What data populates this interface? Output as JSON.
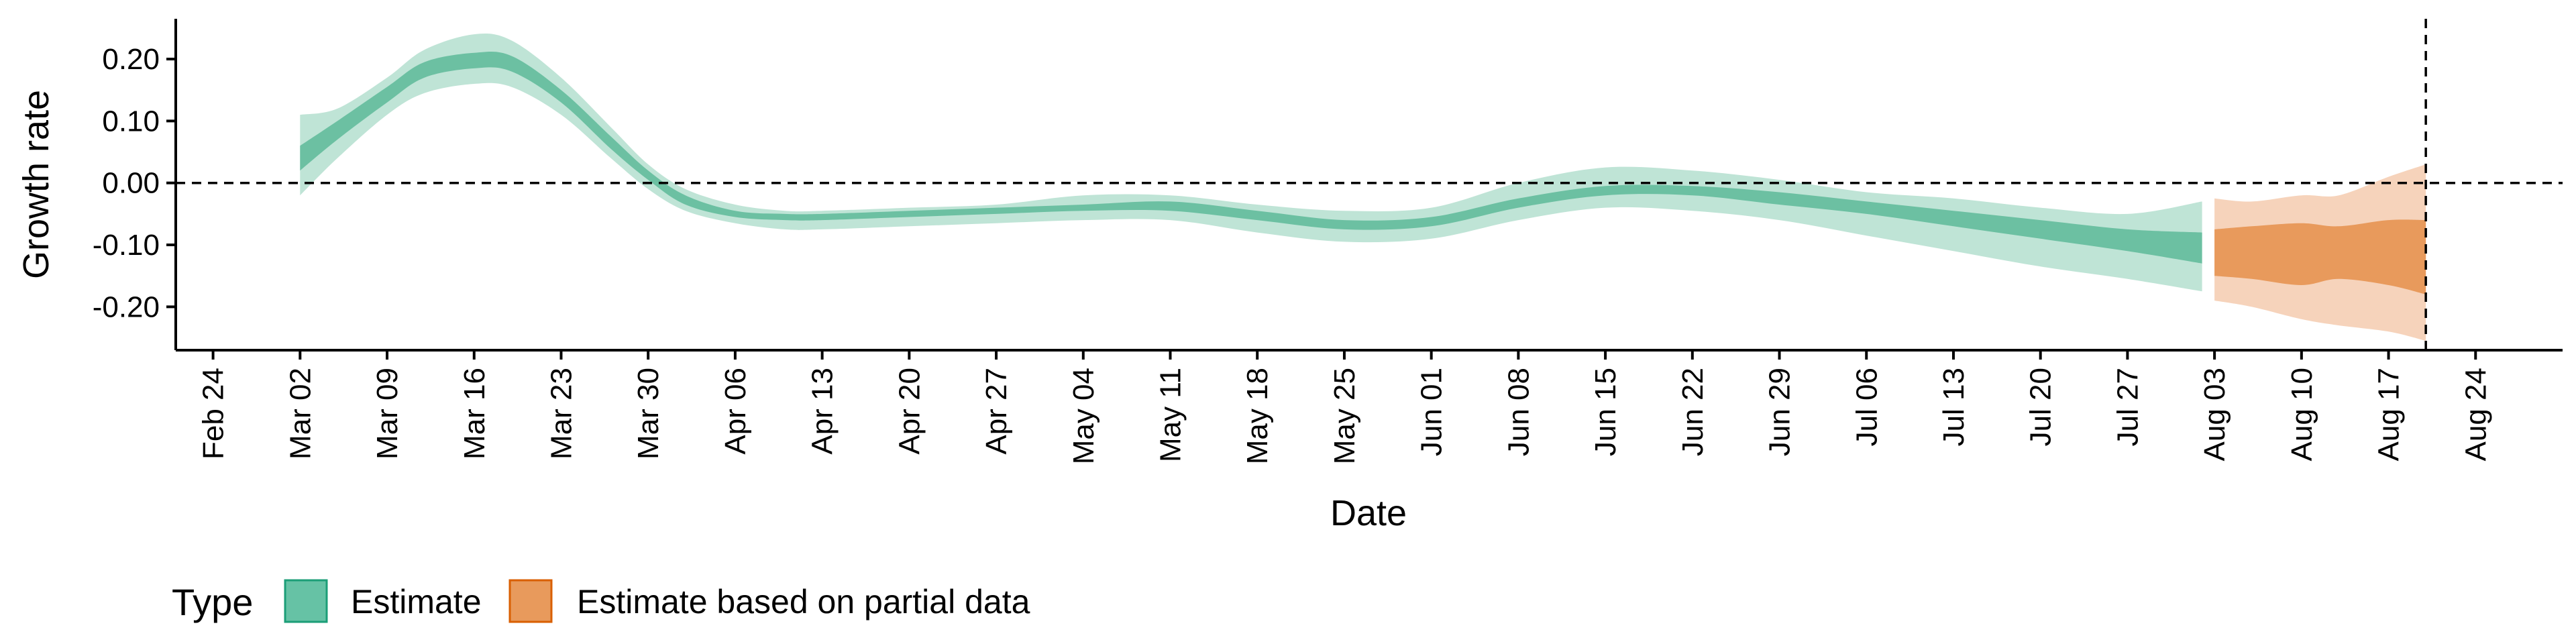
{
  "chart_data": {
    "type": "area",
    "title": "",
    "xlabel": "Date",
    "ylabel": "Growth rate",
    "x_range": [
      "2020-02-21",
      "2020-08-31"
    ],
    "ylim": [
      -0.27,
      0.265
    ],
    "y_ticks": [
      0.2,
      0.1,
      0.0,
      -0.1,
      -0.2
    ],
    "y_tick_labels": [
      "0.20",
      "0.10",
      "0.00",
      "-0.10",
      "-0.20"
    ],
    "x_ticks": [
      "2020-02-24",
      "2020-03-02",
      "2020-03-09",
      "2020-03-16",
      "2020-03-23",
      "2020-03-30",
      "2020-04-06",
      "2020-04-13",
      "2020-04-20",
      "2020-04-27",
      "2020-05-04",
      "2020-05-11",
      "2020-05-18",
      "2020-05-25",
      "2020-06-01",
      "2020-06-08",
      "2020-06-15",
      "2020-06-22",
      "2020-06-29",
      "2020-07-06",
      "2020-07-13",
      "2020-07-20",
      "2020-07-27",
      "2020-08-03",
      "2020-08-10",
      "2020-08-17",
      "2020-08-24"
    ],
    "x_tick_labels": [
      "Feb 24",
      "Mar 02",
      "Mar 09",
      "Mar 16",
      "Mar 23",
      "Mar 30",
      "Apr 06",
      "Apr 13",
      "Apr 20",
      "Apr 27",
      "May 04",
      "May 11",
      "May 18",
      "May 25",
      "Jun 01",
      "Jun 08",
      "Jun 15",
      "Jun 22",
      "Jun 29",
      "Jul 06",
      "Jul 13",
      "Jul 20",
      "Jul 27",
      "Aug 03",
      "Aug 10",
      "Aug 17",
      "Aug 24"
    ],
    "hline_y": 0,
    "vline_x": "2020-08-20",
    "grid": false,
    "legend": {
      "title": "Type",
      "position": "bottom-left",
      "entries": [
        {
          "label": "Estimate",
          "fill": "#66C2A5",
          "border": "#1B9E77"
        },
        {
          "label": "Estimate based on partial data",
          "fill": "#E89A5C",
          "border": "#D95F02"
        }
      ]
    },
    "series": [
      {
        "name": "Estimate",
        "colors": {
          "inner": "#6CC0A2",
          "outer": "#BFE4D6"
        },
        "points": [
          {
            "x": "2020-03-02",
            "outer": [
              -0.02,
              0.11
            ],
            "inner": [
              0.02,
              0.06
            ]
          },
          {
            "x": "2020-03-05",
            "outer": [
              0.04,
              0.12
            ],
            "inner": [
              0.07,
              0.1
            ]
          },
          {
            "x": "2020-03-09",
            "outer": [
              0.11,
              0.17
            ],
            "inner": [
              0.13,
              0.155
            ]
          },
          {
            "x": "2020-03-12",
            "outer": [
              0.145,
              0.215
            ],
            "inner": [
              0.17,
              0.195
            ]
          },
          {
            "x": "2020-03-16",
            "outer": [
              0.16,
              0.24
            ],
            "inner": [
              0.185,
              0.21
            ]
          },
          {
            "x": "2020-03-19",
            "outer": [
              0.155,
              0.23
            ],
            "inner": [
              0.18,
              0.205
            ]
          },
          {
            "x": "2020-03-23",
            "outer": [
              0.11,
              0.17
            ],
            "inner": [
              0.13,
              0.15
            ]
          },
          {
            "x": "2020-03-27",
            "outer": [
              0.04,
              0.09
            ],
            "inner": [
              0.055,
              0.075
            ]
          },
          {
            "x": "2020-03-30",
            "outer": [
              -0.01,
              0.03
            ],
            "inner": [
              0.005,
              0.02
            ]
          },
          {
            "x": "2020-04-02",
            "outer": [
              -0.045,
              -0.01
            ],
            "inner": [
              -0.035,
              -0.02
            ]
          },
          {
            "x": "2020-04-06",
            "outer": [
              -0.065,
              -0.035
            ],
            "inner": [
              -0.055,
              -0.045
            ]
          },
          {
            "x": "2020-04-10",
            "outer": [
              -0.075,
              -0.045
            ],
            "inner": [
              -0.06,
              -0.05
            ]
          },
          {
            "x": "2020-04-13",
            "outer": [
              -0.075,
              -0.045
            ],
            "inner": [
              -0.06,
              -0.05
            ]
          },
          {
            "x": "2020-04-20",
            "outer": [
              -0.07,
              -0.04
            ],
            "inner": [
              -0.055,
              -0.045
            ]
          },
          {
            "x": "2020-04-27",
            "outer": [
              -0.065,
              -0.035
            ],
            "inner": [
              -0.05,
              -0.04
            ]
          },
          {
            "x": "2020-05-04",
            "outer": [
              -0.06,
              -0.02
            ],
            "inner": [
              -0.045,
              -0.035
            ]
          },
          {
            "x": "2020-05-11",
            "outer": [
              -0.06,
              -0.02
            ],
            "inner": [
              -0.045,
              -0.03
            ]
          },
          {
            "x": "2020-05-18",
            "outer": [
              -0.08,
              -0.035
            ],
            "inner": [
              -0.06,
              -0.045
            ]
          },
          {
            "x": "2020-05-25",
            "outer": [
              -0.095,
              -0.045
            ],
            "inner": [
              -0.075,
              -0.06
            ]
          },
          {
            "x": "2020-06-01",
            "outer": [
              -0.09,
              -0.04
            ],
            "inner": [
              -0.07,
              -0.055
            ]
          },
          {
            "x": "2020-06-08",
            "outer": [
              -0.06,
              0.0
            ],
            "inner": [
              -0.04,
              -0.025
            ]
          },
          {
            "x": "2020-06-15",
            "outer": [
              -0.04,
              0.025
            ],
            "inner": [
              -0.02,
              -0.005
            ]
          },
          {
            "x": "2020-06-22",
            "outer": [
              -0.045,
              0.02
            ],
            "inner": [
              -0.02,
              -0.005
            ]
          },
          {
            "x": "2020-06-29",
            "outer": [
              -0.06,
              0.005
            ],
            "inner": [
              -0.035,
              -0.015
            ]
          },
          {
            "x": "2020-07-06",
            "outer": [
              -0.085,
              -0.015
            ],
            "inner": [
              -0.05,
              -0.03
            ]
          },
          {
            "x": "2020-07-13",
            "outer": [
              -0.11,
              -0.025
            ],
            "inner": [
              -0.07,
              -0.045
            ]
          },
          {
            "x": "2020-07-20",
            "outer": [
              -0.135,
              -0.04
            ],
            "inner": [
              -0.09,
              -0.06
            ]
          },
          {
            "x": "2020-07-27",
            "outer": [
              -0.155,
              -0.05
            ],
            "inner": [
              -0.11,
              -0.075
            ]
          },
          {
            "x": "2020-08-02",
            "outer": [
              -0.175,
              -0.03
            ],
            "inner": [
              -0.13,
              -0.08
            ]
          }
        ]
      },
      {
        "name": "Estimate based on partial data",
        "colors": {
          "inner": "#E89A5C",
          "outer": "#F6D3BB"
        },
        "points": [
          {
            "x": "2020-08-03",
            "outer": [
              -0.19,
              -0.025
            ],
            "inner": [
              -0.15,
              -0.075
            ]
          },
          {
            "x": "2020-08-06",
            "outer": [
              -0.2,
              -0.03
            ],
            "inner": [
              -0.155,
              -0.07
            ]
          },
          {
            "x": "2020-08-10",
            "outer": [
              -0.22,
              -0.02
            ],
            "inner": [
              -0.165,
              -0.065
            ]
          },
          {
            "x": "2020-08-13",
            "outer": [
              -0.23,
              -0.02
            ],
            "inner": [
              -0.155,
              -0.07
            ]
          },
          {
            "x": "2020-08-17",
            "outer": [
              -0.24,
              0.01
            ],
            "inner": [
              -0.165,
              -0.06
            ]
          },
          {
            "x": "2020-08-20",
            "outer": [
              -0.255,
              0.03
            ],
            "inner": [
              -0.18,
              -0.06
            ]
          }
        ]
      }
    ]
  }
}
